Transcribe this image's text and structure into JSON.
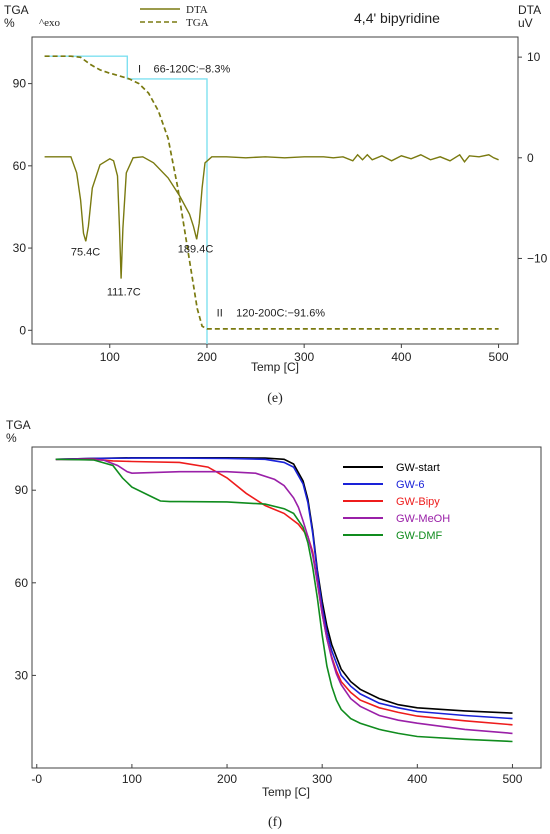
{
  "chart_data": [
    {
      "type": "line",
      "title": "4,4' bipyridine",
      "xlabel": "Temp  [C]",
      "ylabel_left": "TGA\n%",
      "ylabel_right": "DTA\nuV",
      "exo_label": "^exo",
      "caption": "(e)",
      "xlim": [
        20,
        520
      ],
      "ylim_left": [
        -5,
        107
      ],
      "ylim_right": [
        -18.5,
        12
      ],
      "xticks": [
        100,
        200,
        300,
        400,
        500
      ],
      "yticks_left": [
        0,
        30,
        60,
        90
      ],
      "yticks_right": [
        10,
        0,
        -10
      ],
      "legend": {
        "placement": "top-center",
        "entries": [
          "DTA",
          "TGA"
        ]
      },
      "series": [
        {
          "name": "DTA",
          "axis": "right",
          "color": "#7a7a10",
          "dash": "solid",
          "x": [
            33,
            60,
            66,
            70,
            73,
            75.4,
            78,
            82,
            90,
            100,
            104,
            108,
            110,
            111.7,
            113.5,
            117,
            124,
            134,
            145,
            160,
            172,
            182,
            186,
            189.4,
            192,
            195,
            198,
            205,
            220,
            240,
            260,
            280,
            300,
            320,
            330,
            340,
            350,
            355,
            360,
            365,
            370,
            380,
            390,
            400,
            410,
            420,
            430,
            440,
            450,
            460,
            465,
            470,
            480,
            490,
            495,
            500
          ],
          "y": [
            0.1,
            0.1,
            -1.5,
            -4.2,
            -7.5,
            -8.3,
            -6.8,
            -3.0,
            -0.7,
            -0.1,
            -0.3,
            -1.8,
            -7.0,
            -12.0,
            -7.0,
            -1.5,
            0.0,
            0.1,
            -0.5,
            -2.0,
            -3.8,
            -5.6,
            -6.8,
            -8.1,
            -6.5,
            -3.0,
            -0.5,
            0.1,
            0.1,
            0.0,
            0.1,
            0.0,
            0.1,
            0.1,
            0.0,
            0.1,
            -0.3,
            0.3,
            -0.2,
            0.3,
            -0.2,
            0.2,
            -0.3,
            0.2,
            -0.1,
            0.3,
            -0.2,
            0.1,
            -0.3,
            0.3,
            -0.4,
            0.2,
            0.1,
            0.3,
            0.0,
            -0.2
          ]
        },
        {
          "name": "TGA",
          "axis": "left",
          "color": "#7a7a10",
          "dash": "dashed",
          "x": [
            33,
            60,
            70,
            80,
            90,
            100,
            110,
            120,
            130,
            140,
            150,
            160,
            170,
            180,
            190,
            195,
            200,
            220,
            300,
            400,
            500
          ],
          "y": [
            100,
            100,
            99.6,
            97.0,
            95.0,
            93.8,
            92.8,
            91.7,
            90.0,
            86.5,
            80.0,
            70.0,
            52.0,
            30.0,
            8.0,
            1.5,
            0.5,
            0.5,
            0.5,
            0.5,
            0.5
          ]
        },
        {
          "name": "",
          "axis": "left",
          "color": "#7fe0f0",
          "dash": "solid",
          "x": [
            33,
            118,
            118,
            200,
            200
          ],
          "y": [
            100,
            100,
            91.7,
            91.7,
            -5
          ]
        }
      ],
      "annotations": [
        {
          "text": "I",
          "x": 129,
          "y": 94
        },
        {
          "text": "66-120C:−8.3%",
          "x": 145,
          "y": 94
        },
        {
          "text": "II",
          "x": 210,
          "y": 5
        },
        {
          "text": "120-200C:−91.6%",
          "x": 230,
          "y": 5
        },
        {
          "text": "75.4C",
          "axis": "right",
          "x": 60,
          "y": -9.7
        },
        {
          "text": "111.7C",
          "axis": "right",
          "x": 97,
          "y": -13.7
        },
        {
          "text": "189.4C",
          "axis": "right",
          "x": 170,
          "y": -9.4
        }
      ]
    },
    {
      "type": "line",
      "ylabel": "TGA\n%",
      "xlabel": "Temp [C]",
      "caption": "(f)",
      "xlim": [
        -5,
        530
      ],
      "ylim": [
        0,
        104
      ],
      "xticks": [
        0,
        100,
        200,
        300,
        400,
        500
      ],
      "xtick_labels": [
        "-0",
        "100",
        "200",
        "300",
        "400",
        "500"
      ],
      "yticks": [
        30,
        60,
        90
      ],
      "legend": {
        "placement": "top-right"
      },
      "series": [
        {
          "name": "GW-start",
          "color": "#000000",
          "x": [
            20,
            60,
            100,
            150,
            200,
            240,
            260,
            270,
            280,
            285,
            290,
            295,
            300,
            305,
            310,
            315,
            320,
            330,
            340,
            360,
            380,
            400,
            450,
            500
          ],
          "y": [
            100,
            100.3,
            100.5,
            100.5,
            100.5,
            100.4,
            100,
            98.5,
            93,
            87,
            77,
            64,
            54,
            46,
            40,
            36,
            32,
            28,
            25.5,
            22.5,
            20.5,
            19.5,
            18.5,
            17.8
          ]
        },
        {
          "name": "GW-6",
          "color": "#1a22d8",
          "x": [
            20,
            60,
            100,
            150,
            200,
            240,
            260,
            270,
            280,
            285,
            290,
            295,
            300,
            305,
            310,
            315,
            320,
            330,
            340,
            360,
            380,
            400,
            450,
            500
          ],
          "y": [
            100,
            100.3,
            100.4,
            100.4,
            100.3,
            100,
            99,
            97.5,
            92,
            86,
            76,
            63,
            52,
            44,
            38,
            34,
            30,
            26.5,
            24,
            21,
            19.5,
            18.3,
            17,
            16
          ]
        },
        {
          "name": "GW-Bipy",
          "color": "#ee1c1c",
          "x": [
            20,
            60,
            80,
            100,
            150,
            180,
            200,
            220,
            240,
            260,
            275,
            285,
            290,
            295,
            300,
            305,
            310,
            315,
            320,
            330,
            340,
            360,
            380,
            400,
            450,
            500
          ],
          "y": [
            100,
            100,
            99.5,
            99.3,
            99,
            97.5,
            94,
            89,
            85,
            82.5,
            79,
            75,
            70,
            60,
            50,
            42,
            36,
            31.5,
            28,
            24.5,
            22,
            19.5,
            18,
            16.8,
            15.3,
            14
          ]
        },
        {
          "name": "GW-MeOH",
          "color": "#9a20a8",
          "x": [
            20,
            70,
            85,
            95,
            100,
            150,
            200,
            230,
            250,
            260,
            270,
            275,
            280,
            285,
            290,
            295,
            300,
            305,
            310,
            315,
            320,
            330,
            340,
            360,
            380,
            400,
            450,
            500
          ],
          "y": [
            100,
            99.8,
            98,
            96,
            95.5,
            96,
            96,
            95.5,
            93.5,
            91.5,
            87.5,
            84.5,
            80,
            75,
            69,
            60,
            50,
            42,
            35.5,
            30.5,
            27,
            22.5,
            20,
            17,
            15.5,
            14.5,
            12.5,
            11.2
          ]
        },
        {
          "name": "GW-DMF",
          "color": "#108c1e",
          "x": [
            20,
            60,
            80,
            90,
            100,
            120,
            130,
            140,
            150,
            200,
            240,
            260,
            270,
            280,
            285,
            290,
            295,
            300,
            305,
            310,
            315,
            320,
            330,
            340,
            360,
            380,
            400,
            450,
            500
          ],
          "y": [
            100,
            99.8,
            98,
            94,
            91,
            88,
            86.5,
            86.3,
            86.3,
            86.2,
            85.5,
            84,
            82.5,
            78,
            73,
            65,
            55,
            43,
            33,
            26.5,
            22,
            19,
            16,
            14.5,
            12.5,
            11.2,
            10.2,
            9.3,
            8.6
          ]
        }
      ]
    }
  ]
}
